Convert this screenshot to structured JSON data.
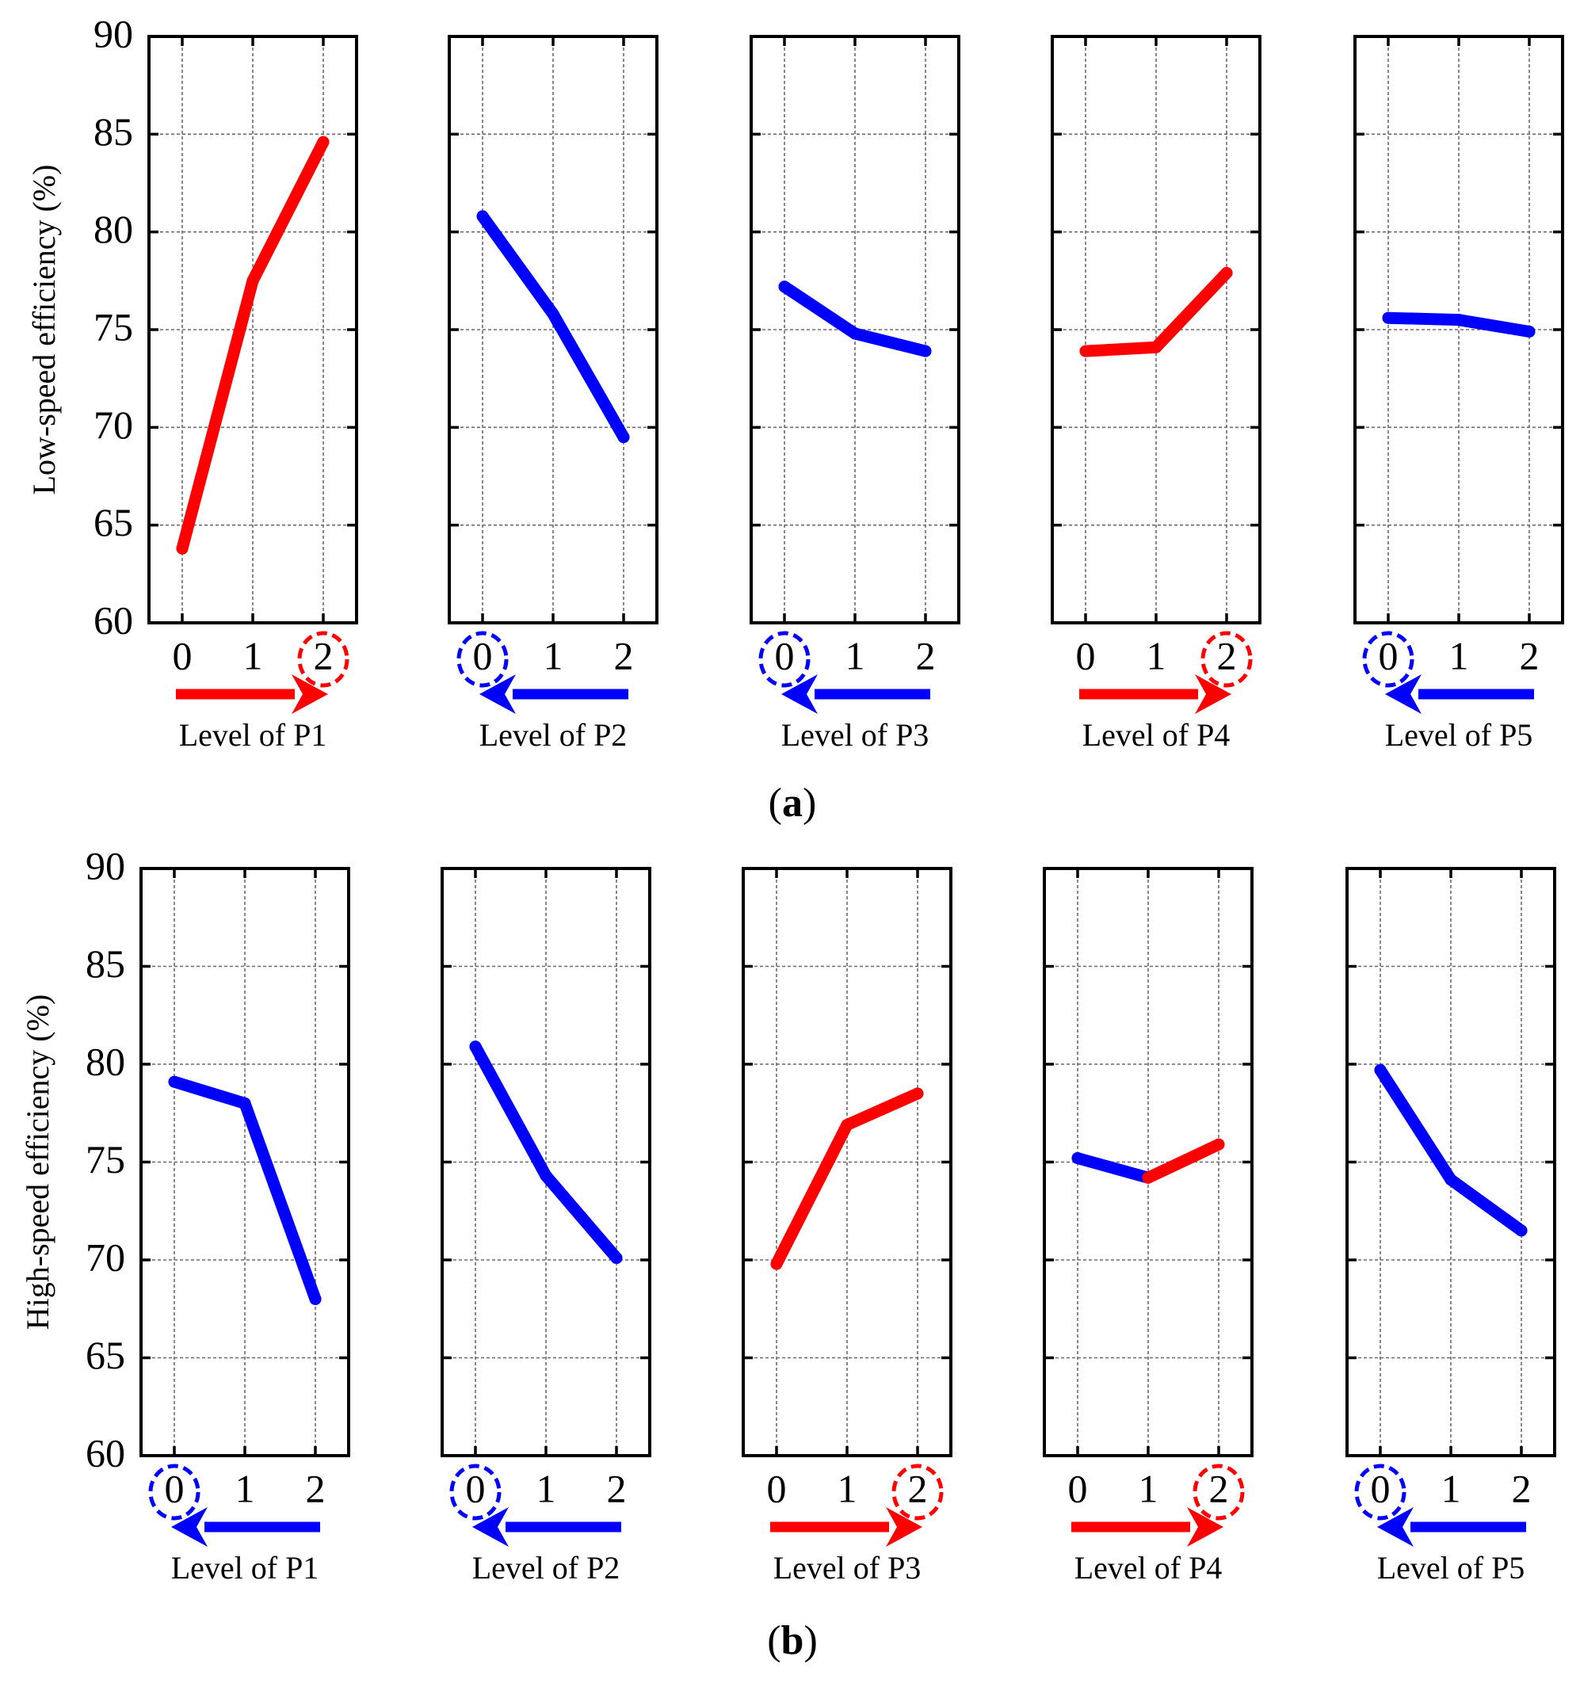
{
  "colors": {
    "improve": "#ff0000",
    "worsen": "#0000ff",
    "frame": "#000000",
    "grid": "#6b6b6b"
  },
  "chart_data": [
    {
      "id": "a",
      "type": "line",
      "panel_label": "a",
      "ylabel": "Low-speed efficiency (%)",
      "ylim": [
        60,
        90
      ],
      "yticks": [
        "60",
        "65",
        "70",
        "75",
        "80",
        "85",
        "90"
      ],
      "subplots": [
        {
          "xlabel": "Level of P1",
          "categories": [
            "0",
            "1",
            "2"
          ],
          "values": [
            63.8,
            77.5,
            84.6
          ],
          "segment_colors": [
            "improve",
            "improve"
          ],
          "optimal_level": 2,
          "marker_color": "improve",
          "arrow_direction": "right",
          "arrow_color": "improve"
        },
        {
          "xlabel": "Level of P2",
          "categories": [
            "0",
            "1",
            "2"
          ],
          "values": [
            80.8,
            75.8,
            69.5
          ],
          "segment_colors": [
            "worsen",
            "worsen"
          ],
          "optimal_level": 0,
          "marker_color": "worsen",
          "arrow_direction": "left",
          "arrow_color": "worsen"
        },
        {
          "xlabel": "Level of P3",
          "categories": [
            "0",
            "1",
            "2"
          ],
          "values": [
            77.2,
            74.8,
            73.9
          ],
          "segment_colors": [
            "worsen",
            "worsen"
          ],
          "optimal_level": 0,
          "marker_color": "worsen",
          "arrow_direction": "left",
          "arrow_color": "worsen"
        },
        {
          "xlabel": "Level of P4",
          "categories": [
            "0",
            "1",
            "2"
          ],
          "values": [
            73.9,
            74.1,
            77.9
          ],
          "segment_colors": [
            "improve",
            "improve"
          ],
          "optimal_level": 2,
          "marker_color": "improve",
          "arrow_direction": "right",
          "arrow_color": "improve"
        },
        {
          "xlabel": "Level of P5",
          "categories": [
            "0",
            "1",
            "2"
          ],
          "values": [
            75.6,
            75.5,
            74.9
          ],
          "segment_colors": [
            "worsen",
            "worsen"
          ],
          "optimal_level": 0,
          "marker_color": "worsen",
          "arrow_direction": "left",
          "arrow_color": "worsen"
        }
      ]
    },
    {
      "id": "b",
      "type": "line",
      "panel_label": "b",
      "ylabel": "High-speed efficiency (%)",
      "ylim": [
        60,
        90
      ],
      "yticks": [
        "60",
        "65",
        "70",
        "75",
        "80",
        "85",
        "90"
      ],
      "subplots": [
        {
          "xlabel": "Level of P1",
          "categories": [
            "0",
            "1",
            "2"
          ],
          "values": [
            79.1,
            78.0,
            68.0
          ],
          "segment_colors": [
            "worsen",
            "worsen"
          ],
          "optimal_level": 0,
          "marker_color": "worsen",
          "arrow_direction": "left",
          "arrow_color": "worsen"
        },
        {
          "xlabel": "Level of P2",
          "categories": [
            "0",
            "1",
            "2"
          ],
          "values": [
            80.9,
            74.3,
            70.1
          ],
          "segment_colors": [
            "worsen",
            "worsen"
          ],
          "optimal_level": 0,
          "marker_color": "worsen",
          "arrow_direction": "left",
          "arrow_color": "worsen"
        },
        {
          "xlabel": "Level of P3",
          "categories": [
            "0",
            "1",
            "2"
          ],
          "values": [
            69.8,
            76.9,
            78.5
          ],
          "segment_colors": [
            "improve",
            "improve"
          ],
          "optimal_level": 2,
          "marker_color": "improve",
          "arrow_direction": "right",
          "arrow_color": "improve"
        },
        {
          "xlabel": "Level of P4",
          "categories": [
            "0",
            "1",
            "2"
          ],
          "values": [
            75.2,
            74.2,
            75.9
          ],
          "segment_colors": [
            "worsen",
            "improve"
          ],
          "optimal_level": 2,
          "marker_color": "improve",
          "arrow_direction": "right",
          "arrow_color": "improve"
        },
        {
          "xlabel": "Level of P5",
          "categories": [
            "0",
            "1",
            "2"
          ],
          "values": [
            79.7,
            74.1,
            71.5
          ],
          "segment_colors": [
            "worsen",
            "worsen"
          ],
          "optimal_level": 0,
          "marker_color": "worsen",
          "arrow_direction": "left",
          "arrow_color": "worsen"
        }
      ]
    }
  ]
}
